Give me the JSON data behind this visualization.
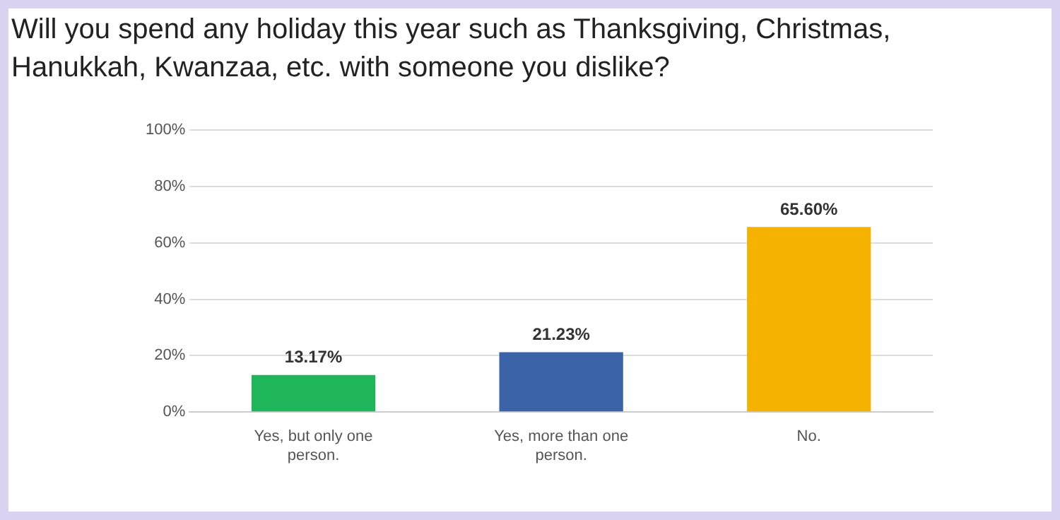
{
  "chart_data": {
    "type": "bar",
    "title": "Will you spend any holiday this year such as Thanksgiving, Christmas, Hanukkah, Kwanzaa, etc. with someone you dislike?",
    "categories": [
      "Yes, but only one person.",
      "Yes, more than one person.",
      "No."
    ],
    "values": [
      13.17,
      21.23,
      65.6
    ],
    "colors": [
      "#1fb55a",
      "#3a63a8",
      "#f5b300"
    ],
    "value_labels": [
      "13.17%",
      "21.23%",
      "65.60%"
    ],
    "ylim": [
      0,
      100
    ],
    "yticks": [
      {
        "value": 0,
        "label": "0%"
      },
      {
        "value": 20,
        "label": "20%"
      },
      {
        "value": 40,
        "label": "40%"
      },
      {
        "value": 60,
        "label": "60%"
      },
      {
        "value": 80,
        "label": "80%"
      },
      {
        "value": 100,
        "label": "100%"
      }
    ],
    "grid": "y",
    "legend": false
  }
}
